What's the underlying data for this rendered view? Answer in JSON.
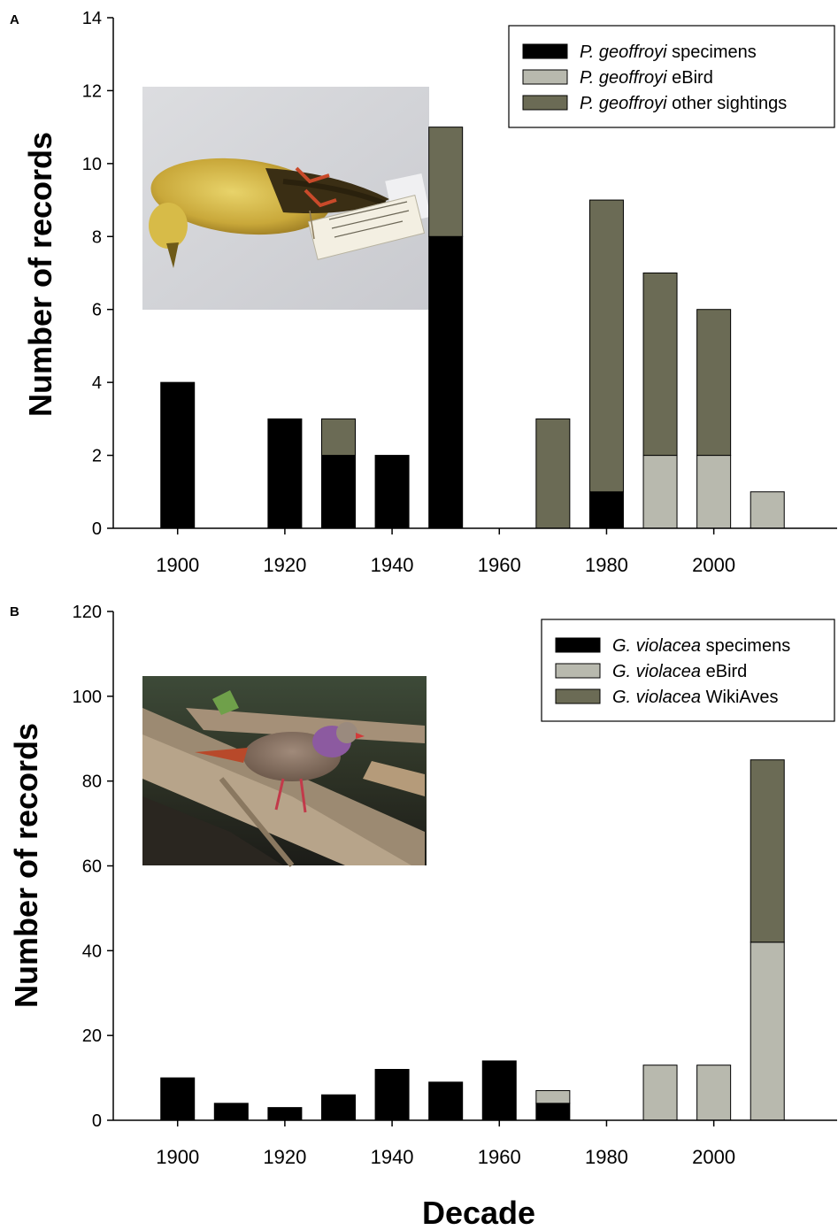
{
  "figure": {
    "xlabel": "Decade"
  },
  "colors": {
    "specimens": "#000000",
    "ebird": "#b8b9ae",
    "other": "#6b6b55"
  },
  "chart_data": [
    {
      "type": "bar",
      "stacked": true,
      "panel_label": "A",
      "ylabel": "Number of records",
      "xlabel": "",
      "ylim": [
        0,
        14
      ],
      "yticks": [
        0,
        2,
        4,
        6,
        8,
        10,
        12,
        14
      ],
      "xlim": [
        1888,
        2023
      ],
      "xticks": [
        1900,
        1920,
        1940,
        1960,
        1980,
        2000
      ],
      "x": [
        1900,
        1920,
        1930,
        1940,
        1950,
        1970,
        1980,
        1990,
        2000,
        2010
      ],
      "series": [
        {
          "name_italic": "P. geoffroyi",
          "name_rest": " specimens",
          "color_key": "specimens",
          "values": [
            4,
            3,
            2,
            2,
            8,
            0,
            1,
            0,
            0,
            0
          ]
        },
        {
          "name_italic": "P. geoffroyi",
          "name_rest": " eBird",
          "color_key": "ebird",
          "values": [
            0,
            0,
            0,
            0,
            0,
            0,
            0,
            2,
            2,
            1
          ]
        },
        {
          "name_italic": "P. geoffroyi",
          "name_rest": " other sightings",
          "color_key": "other",
          "values": [
            0,
            0,
            1,
            0,
            3,
            3,
            8,
            5,
            4,
            0
          ]
        }
      ],
      "legend": "top-right",
      "grid": false,
      "inset_photo": "bird-specimen-photo"
    },
    {
      "type": "bar",
      "stacked": true,
      "panel_label": "B",
      "ylabel": "Number of records",
      "xlabel": "Decade",
      "ylim": [
        0,
        120
      ],
      "yticks": [
        0,
        20,
        40,
        60,
        80,
        100,
        120
      ],
      "xlim": [
        1888,
        2023
      ],
      "xticks": [
        1900,
        1920,
        1940,
        1960,
        1980,
        2000
      ],
      "x": [
        1900,
        1910,
        1920,
        1930,
        1940,
        1950,
        1960,
        1970,
        1990,
        2000,
        2010
      ],
      "series": [
        {
          "name_italic": "G. violacea",
          "name_rest": " specimens",
          "color_key": "specimens",
          "values": [
            10,
            4,
            3,
            6,
            12,
            9,
            14,
            4,
            0,
            0,
            0
          ]
        },
        {
          "name_italic": "G. violacea",
          "name_rest": " eBird",
          "color_key": "ebird",
          "values": [
            0,
            0,
            0,
            0,
            0,
            0,
            0,
            3,
            13,
            13,
            42
          ]
        },
        {
          "name_italic": "G. violacea",
          "name_rest": " WikiAves",
          "color_key": "other",
          "values": [
            0,
            0,
            0,
            0,
            0,
            0,
            0,
            0,
            0,
            0,
            43
          ]
        }
      ],
      "legend": "top-right",
      "grid": false,
      "inset_photo": "live-dove-photo"
    }
  ]
}
